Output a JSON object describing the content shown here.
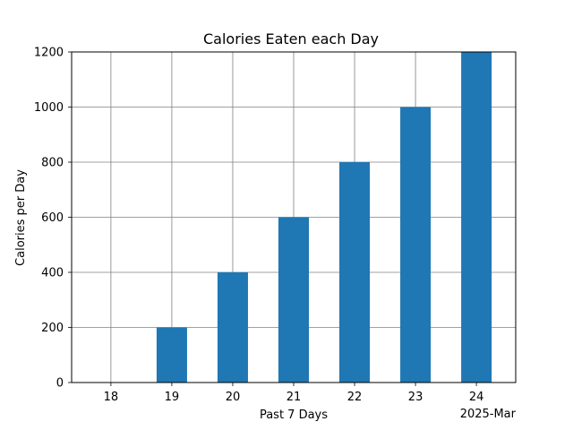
{
  "chart_data": {
    "type": "bar",
    "title": "Calories Eaten each Day",
    "xlabel": "Past 7 Days",
    "ylabel": "Calories per Day",
    "x_offset_label": "2025-Mar",
    "categories": [
      "18",
      "19",
      "20",
      "21",
      "22",
      "23",
      "24"
    ],
    "values": [
      0,
      200,
      400,
      600,
      800,
      1000,
      1200
    ],
    "ylim": [
      0,
      1200
    ],
    "yticks": [
      0,
      200,
      400,
      600,
      800,
      1000,
      1200
    ],
    "grid": true,
    "bar_color": "#1f77b4",
    "grid_color": "#808080"
  }
}
